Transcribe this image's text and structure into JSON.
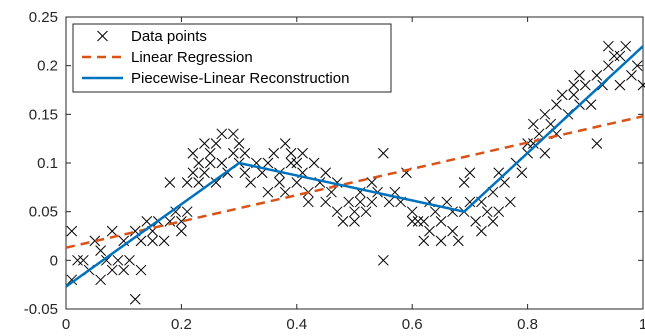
{
  "chart_data": {
    "type": "scatter",
    "title": "",
    "xlabel": "",
    "ylabel": "",
    "xlim": [
      0,
      1
    ],
    "ylim": [
      -0.05,
      0.25
    ],
    "xticks": [
      0,
      0.2,
      0.4,
      0.6,
      0.8,
      1
    ],
    "xtick_labels": [
      "0",
      "0.2",
      "0.4",
      "0.6",
      "0.8",
      "1"
    ],
    "yticks": [
      -0.05,
      0,
      0.05,
      0.1,
      0.15,
      0.2,
      0.25
    ],
    "ytick_labels": [
      "-0.05",
      "0",
      "0.05",
      "0.1",
      "0.15",
      "0.2",
      "0.25"
    ],
    "grid": false,
    "legend_position": "top-left",
    "series": [
      {
        "name": "Data points",
        "kind": "scatter",
        "marker": "x",
        "color": "#000000",
        "points": [
          [
            0.01,
            0.03
          ],
          [
            0.01,
            -0.02
          ],
          [
            0.02,
            0.0
          ],
          [
            0.03,
            0.0
          ],
          [
            0.04,
            -0.01
          ],
          [
            0.05,
            0.02
          ],
          [
            0.06,
            0.01
          ],
          [
            0.06,
            -0.02
          ],
          [
            0.07,
            0.0
          ],
          [
            0.08,
            -0.01
          ],
          [
            0.08,
            0.03
          ],
          [
            0.09,
            0.0
          ],
          [
            0.1,
            -0.01
          ],
          [
            0.1,
            0.02
          ],
          [
            0.11,
            0.0
          ],
          [
            0.12,
            0.03
          ],
          [
            0.12,
            -0.04
          ],
          [
            0.13,
            0.02
          ],
          [
            0.13,
            -0.01
          ],
          [
            0.14,
            0.04
          ],
          [
            0.15,
            0.03
          ],
          [
            0.15,
            0.02
          ],
          [
            0.16,
            0.04
          ],
          [
            0.17,
            0.02
          ],
          [
            0.18,
            0.04
          ],
          [
            0.18,
            0.08
          ],
          [
            0.19,
            0.05
          ],
          [
            0.2,
            0.04
          ],
          [
            0.2,
            0.03
          ],
          [
            0.21,
            0.08
          ],
          [
            0.21,
            0.05
          ],
          [
            0.22,
            0.11
          ],
          [
            0.22,
            0.09
          ],
          [
            0.23,
            0.1
          ],
          [
            0.23,
            0.08
          ],
          [
            0.24,
            0.12
          ],
          [
            0.24,
            0.09
          ],
          [
            0.25,
            0.1
          ],
          [
            0.25,
            0.11
          ],
          [
            0.26,
            0.08
          ],
          [
            0.26,
            0.12
          ],
          [
            0.27,
            0.13
          ],
          [
            0.27,
            0.1
          ],
          [
            0.28,
            0.09
          ],
          [
            0.29,
            0.11
          ],
          [
            0.29,
            0.13
          ],
          [
            0.3,
            0.1
          ],
          [
            0.3,
            0.12
          ],
          [
            0.31,
            0.11
          ],
          [
            0.31,
            0.09
          ],
          [
            0.32,
            0.08
          ],
          [
            0.33,
            0.1
          ],
          [
            0.34,
            0.09
          ],
          [
            0.35,
            0.07
          ],
          [
            0.35,
            0.1
          ],
          [
            0.36,
            0.11
          ],
          [
            0.37,
            0.08
          ],
          [
            0.37,
            0.09
          ],
          [
            0.38,
            0.12
          ],
          [
            0.38,
            0.07
          ],
          [
            0.39,
            0.1
          ],
          [
            0.39,
            0.11
          ],
          [
            0.4,
            0.1
          ],
          [
            0.4,
            0.08
          ],
          [
            0.41,
            0.09
          ],
          [
            0.41,
            0.11
          ],
          [
            0.42,
            0.07
          ],
          [
            0.42,
            0.06
          ],
          [
            0.43,
            0.1
          ],
          [
            0.44,
            0.08
          ],
          [
            0.45,
            0.06
          ],
          [
            0.45,
            0.09
          ],
          [
            0.46,
            0.07
          ],
          [
            0.47,
            0.08
          ],
          [
            0.47,
            0.05
          ],
          [
            0.48,
            0.04
          ],
          [
            0.49,
            0.06
          ],
          [
            0.5,
            0.05
          ],
          [
            0.5,
            0.04
          ],
          [
            0.51,
            0.06
          ],
          [
            0.51,
            0.07
          ],
          [
            0.52,
            0.05
          ],
          [
            0.53,
            0.08
          ],
          [
            0.53,
            0.06
          ],
          [
            0.54,
            0.07
          ],
          [
            0.55,
            0.11
          ],
          [
            0.55,
            0.0
          ],
          [
            0.56,
            0.06
          ],
          [
            0.57,
            0.07
          ],
          [
            0.58,
            0.06
          ],
          [
            0.59,
            0.09
          ],
          [
            0.6,
            0.05
          ],
          [
            0.6,
            0.04
          ],
          [
            0.61,
            0.04
          ],
          [
            0.62,
            0.04
          ],
          [
            0.62,
            0.02
          ],
          [
            0.63,
            0.03
          ],
          [
            0.63,
            0.06
          ],
          [
            0.64,
            0.05
          ],
          [
            0.65,
            0.02
          ],
          [
            0.65,
            0.04
          ],
          [
            0.66,
            0.06
          ],
          [
            0.67,
            0.03
          ],
          [
            0.67,
            0.05
          ],
          [
            0.68,
            0.02
          ],
          [
            0.69,
            0.08
          ],
          [
            0.69,
            0.05
          ],
          [
            0.7,
            0.06
          ],
          [
            0.7,
            0.09
          ],
          [
            0.71,
            0.04
          ],
          [
            0.72,
            0.06
          ],
          [
            0.72,
            0.03
          ],
          [
            0.73,
            0.05
          ],
          [
            0.74,
            0.04
          ],
          [
            0.74,
            0.07
          ],
          [
            0.75,
            0.05
          ],
          [
            0.75,
            0.09
          ],
          [
            0.76,
            0.08
          ],
          [
            0.77,
            0.06
          ],
          [
            0.78,
            0.1
          ],
          [
            0.79,
            0.09
          ],
          [
            0.8,
            0.12
          ],
          [
            0.8,
            0.11
          ],
          [
            0.81,
            0.14
          ],
          [
            0.81,
            0.12
          ],
          [
            0.82,
            0.13
          ],
          [
            0.83,
            0.11
          ],
          [
            0.83,
            0.15
          ],
          [
            0.84,
            0.14
          ],
          [
            0.85,
            0.16
          ],
          [
            0.85,
            0.13
          ],
          [
            0.86,
            0.17
          ],
          [
            0.87,
            0.15
          ],
          [
            0.88,
            0.18
          ],
          [
            0.88,
            0.17
          ],
          [
            0.89,
            0.19
          ],
          [
            0.89,
            0.16
          ],
          [
            0.9,
            0.18
          ],
          [
            0.91,
            0.16
          ],
          [
            0.92,
            0.12
          ],
          [
            0.92,
            0.19
          ],
          [
            0.93,
            0.18
          ],
          [
            0.94,
            0.2
          ],
          [
            0.94,
            0.22
          ],
          [
            0.95,
            0.21
          ],
          [
            0.96,
            0.21
          ],
          [
            0.96,
            0.18
          ],
          [
            0.97,
            0.22
          ],
          [
            0.98,
            0.19
          ],
          [
            0.99,
            0.2
          ],
          [
            1.0,
            0.18
          ]
        ]
      },
      {
        "name": "Linear Regression",
        "kind": "line",
        "style": "dashed",
        "color": "#d95319",
        "points": [
          [
            0,
            0.013
          ],
          [
            1,
            0.148
          ]
        ]
      },
      {
        "name": "Piecewise-Linear Reconstruction",
        "kind": "line",
        "style": "solid",
        "color": "#0072bd",
        "points": [
          [
            0,
            -0.027
          ],
          [
            0.3,
            0.1
          ],
          [
            0.69,
            0.05
          ],
          [
            1,
            0.22
          ]
        ]
      }
    ]
  }
}
